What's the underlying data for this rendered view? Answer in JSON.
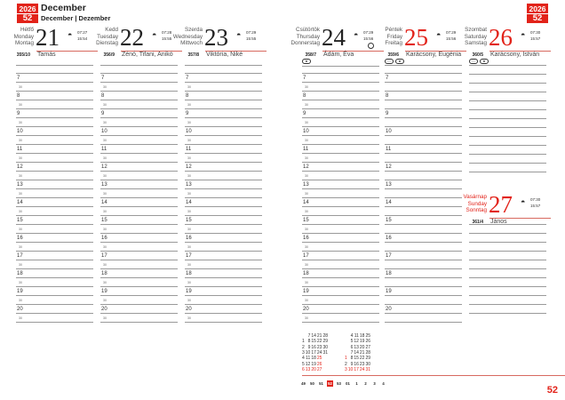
{
  "header": {
    "year": "2026",
    "week": "52",
    "month_hu": "December",
    "month_multi": "December | Dezember"
  },
  "hours": [
    "7",
    "8",
    "9",
    "10",
    "11",
    "12",
    "13",
    "14",
    "15",
    "16",
    "17",
    "18",
    "19",
    "20"
  ],
  "half_label": "30",
  "days": [
    {
      "names": "Hétfő Monday Montag",
      "hu": "Hétfő",
      "en": "Monday",
      "de": "Montag",
      "num": "21",
      "rise": "07:27",
      "set": "15:54",
      "count": "355/10",
      "nameday": "Tamás"
    },
    {
      "hu": "Kedd",
      "en": "Tuesday",
      "de": "Dienstag",
      "num": "22",
      "rise": "07:28",
      "set": "15:55",
      "count": "356/9",
      "nameday": "Zénó, Tifani, Anikó"
    },
    {
      "hu": "Szerda",
      "en": "Wednesday",
      "de": "Mittwoch",
      "num": "23",
      "rise": "07:29",
      "set": "15:55",
      "count": "357/8",
      "nameday": "Viktória, Niké"
    },
    {
      "hu": "Csütörtök",
      "en": "Thursday",
      "de": "Donnerstag",
      "num": "24",
      "rise": "07:29",
      "set": "15:56",
      "count": "358/7",
      "nameday": "Ádám, Éva"
    },
    {
      "hu": "Péntek",
      "en": "Friday",
      "de": "Freitag",
      "num": "25",
      "rise": "07:29",
      "set": "15:56",
      "count": "359/6",
      "nameday": "Karácsony, Eugénia"
    },
    {
      "hu": "Szombat",
      "en": "Saturday",
      "de": "Samstag",
      "num": "26",
      "rise": "07:30",
      "set": "15:57",
      "count": "360/5",
      "nameday": "Karácsony, István"
    },
    {
      "hu": "Vasárnap",
      "en": "Sunday",
      "de": "Sonntag",
      "num": "27",
      "rise": "07:30",
      "set": "15:57",
      "count": "361/4",
      "nameday": "János"
    }
  ],
  "holiday_colors": {
    "normal": "#222222",
    "holiday": "#e2231a"
  },
  "mini_calendar": {
    "december": [
      [
        "",
        "7",
        "14",
        "21",
        "28"
      ],
      [
        "1",
        "8",
        "15",
        "22",
        "29"
      ],
      [
        "2",
        "9",
        "16",
        "23",
        "30"
      ],
      [
        "3",
        "10",
        "17",
        "24",
        "31"
      ],
      [
        "4",
        "11",
        "18",
        "25",
        ""
      ],
      [
        "5",
        "12",
        "19",
        "26",
        ""
      ],
      [
        "6",
        "13",
        "20",
        "27",
        ""
      ]
    ],
    "january": [
      [
        "",
        "4",
        "11",
        "18",
        "25"
      ],
      [
        "",
        "5",
        "12",
        "19",
        "26"
      ],
      [
        "",
        "6",
        "13",
        "20",
        "27"
      ],
      [
        "",
        "7",
        "14",
        "21",
        "28"
      ],
      [
        "1",
        "8",
        "15",
        "22",
        "29"
      ],
      [
        "2",
        "9",
        "16",
        "23",
        "30"
      ],
      [
        "3",
        "10",
        "17",
        "24",
        "31"
      ]
    ],
    "weeks": [
      "49",
      "50",
      "51",
      "52",
      "53",
      "01",
      "1",
      "2",
      "3",
      "4"
    ],
    "current_week": "52"
  },
  "page_number": "52"
}
